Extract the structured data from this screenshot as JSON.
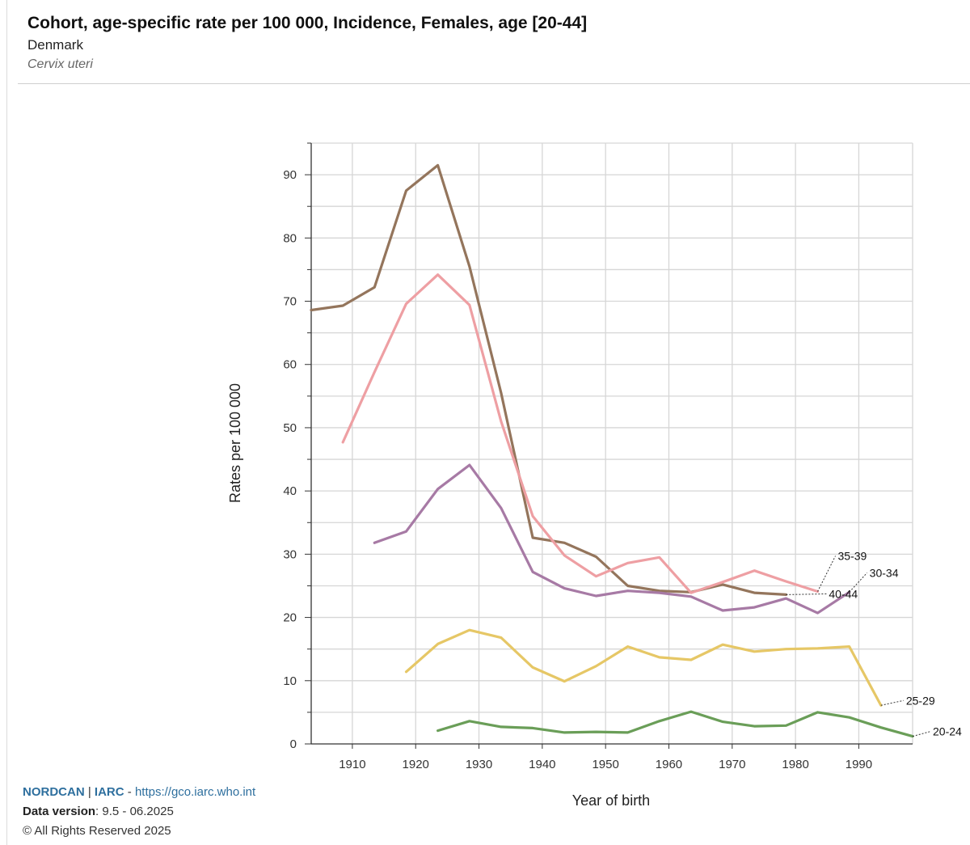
{
  "header": {
    "title": "Cohort, age-specific rate per 100 000, Incidence, Females, age [20-44]",
    "subtitle": "Denmark",
    "site": "Cervix uteri"
  },
  "footer": {
    "brand_nordcan": "NORDCAN",
    "separator": "|",
    "brand_iarc": "IARC",
    "dash": "-",
    "url": "https://gco.iarc.who.int",
    "version_label": "Data version",
    "version_value": ": 9.5 - 06.2025",
    "copyright": "© All Rights Reserved 2025"
  },
  "chart_data": {
    "type": "line",
    "xlabel": "Year of birth",
    "ylabel": "Rates per 100 000",
    "xlim": [
      1903.5,
      1998.5
    ],
    "ylim": [
      0,
      95
    ],
    "xticks": [
      1910,
      1920,
      1930,
      1940,
      1950,
      1960,
      1970,
      1980,
      1990
    ],
    "yticks": [
      0,
      10,
      20,
      30,
      40,
      50,
      60,
      70,
      80,
      90
    ],
    "grid": true,
    "series": [
      {
        "name": "40-44",
        "color": "#94755c",
        "x": [
          1903.5,
          1908.5,
          1913.5,
          1918.5,
          1923.5,
          1928.5,
          1933.5,
          1938.5,
          1943.5,
          1948.5,
          1953.5,
          1958.5,
          1963.5,
          1968.5,
          1973.5,
          1978.5
        ],
        "y": [
          68.6,
          69.3,
          72.2,
          87.5,
          91.5,
          75.5,
          55.5,
          32.6,
          31.8,
          29.6,
          25.0,
          24.2,
          24.0,
          25.2,
          23.9,
          23.6
        ]
      },
      {
        "name": "35-39",
        "color": "#ee9fa3",
        "x": [
          1908.5,
          1913.5,
          1918.5,
          1923.5,
          1928.5,
          1933.5,
          1938.5,
          1943.5,
          1948.5,
          1953.5,
          1958.5,
          1963.5,
          1968.5,
          1973.5,
          1978.5,
          1983.5
        ],
        "y": [
          47.7,
          58.8,
          69.6,
          74.2,
          69.4,
          51.0,
          36.0,
          29.8,
          26.5,
          28.6,
          29.5,
          23.9,
          25.6,
          27.4,
          25.7,
          24.1
        ]
      },
      {
        "name": "30-34",
        "color": "#a77aa5",
        "x": [
          1913.5,
          1918.5,
          1923.5,
          1928.5,
          1933.5,
          1938.5,
          1943.5,
          1948.5,
          1953.5,
          1958.5,
          1963.5,
          1968.5,
          1973.5,
          1978.5,
          1983.5,
          1988.5
        ],
        "y": [
          31.8,
          33.6,
          40.3,
          44.1,
          37.3,
          27.2,
          24.6,
          23.4,
          24.2,
          23.9,
          23.3,
          21.1,
          21.6,
          23.0,
          20.7,
          24.0
        ]
      },
      {
        "name": "25-29",
        "color": "#e6c766",
        "x": [
          1918.5,
          1923.5,
          1928.5,
          1933.5,
          1938.5,
          1943.5,
          1948.5,
          1953.5,
          1958.5,
          1963.5,
          1968.5,
          1973.5,
          1978.5,
          1983.5,
          1988.5,
          1993.5
        ],
        "y": [
          11.4,
          15.8,
          18.0,
          16.8,
          12.1,
          9.9,
          12.3,
          15.4,
          13.7,
          13.3,
          15.7,
          14.6,
          15.0,
          15.1,
          15.4,
          6.1
        ]
      },
      {
        "name": "20-24",
        "color": "#6a9e58",
        "x": [
          1923.5,
          1928.5,
          1933.5,
          1938.5,
          1943.5,
          1948.5,
          1953.5,
          1958.5,
          1963.5,
          1968.5,
          1973.5,
          1978.5,
          1983.5,
          1988.5,
          1993.5,
          1998.5
        ],
        "y": [
          2.1,
          3.6,
          2.7,
          2.5,
          1.8,
          1.9,
          1.8,
          3.6,
          5.1,
          3.5,
          2.8,
          2.9,
          5.0,
          4.2,
          2.6,
          1.2
        ]
      }
    ]
  }
}
